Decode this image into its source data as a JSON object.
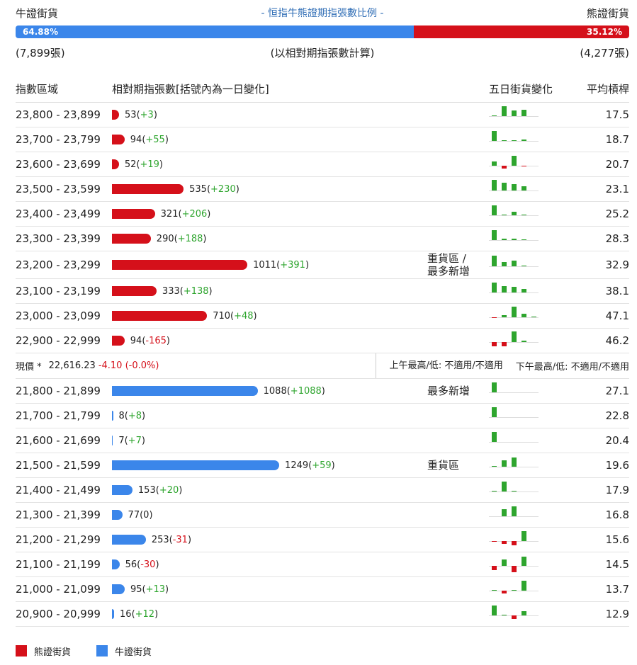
{
  "header": {
    "bull_label": "牛證街貨",
    "title": "- 恒指牛熊證期指張數比例 -",
    "bear_label": "熊證街貨",
    "ratio": {
      "values": [
        64.88,
        35.12
      ],
      "value_labels": [
        "64.88%",
        "35.12%"
      ],
      "colors": [
        "#3b86ea",
        "#d5101a"
      ]
    },
    "bull_count": "(7,899張)",
    "note": "(以相對期指張數計算)",
    "bear_count": "(4,277張)"
  },
  "columns": [
    "指數區域",
    "相對期指張數[括號內為一日變化]",
    "五日街貨變化",
    "平均槓桿"
  ],
  "bear_color": "#d5101a",
  "bull_color": "#3b86ea",
  "up_color": "#2ea52e",
  "down_color": "#d5101a",
  "bear_rows": [
    {
      "range": "23,800 - 23,899",
      "count": 53,
      "change": "+3",
      "five_day": [
        1,
        14,
        8,
        9,
        0
      ],
      "leverage": 17.5
    },
    {
      "range": "23,700 - 23,799",
      "count": 94,
      "change": "+55",
      "five_day": [
        14,
        1,
        1,
        2,
        0
      ],
      "leverage": 18.7
    },
    {
      "range": "23,600 - 23,699",
      "count": 52,
      "change": "+19",
      "five_day": [
        6,
        -4,
        14,
        -1,
        0
      ],
      "leverage": 20.7
    },
    {
      "range": "23,500 - 23,599",
      "count": 535,
      "change": "+230",
      "five_day": [
        15,
        11,
        9,
        6,
        0
      ],
      "leverage": 23.1
    },
    {
      "range": "23,400 - 23,499",
      "count": 321,
      "change": "+206",
      "five_day": [
        14,
        1,
        5,
        1,
        0
      ],
      "leverage": 25.2
    },
    {
      "range": "23,300 - 23,399",
      "count": 290,
      "change": "+188",
      "five_day": [
        14,
        2,
        2,
        1,
        0
      ],
      "leverage": 28.3
    },
    {
      "range": "23,200 - 23,299",
      "count": 1011,
      "change": "+391",
      "note": "重貨區 /\n最多新增",
      "five_day": [
        15,
        6,
        8,
        1,
        0
      ],
      "leverage": 32.9
    },
    {
      "range": "23,100 - 23,199",
      "count": 333,
      "change": "+138",
      "five_day": [
        14,
        9,
        8,
        5,
        0
      ],
      "leverage": 38.1
    },
    {
      "range": "23,000 - 23,099",
      "count": 710,
      "change": "+48",
      "five_day": [
        -1,
        3,
        15,
        5,
        1
      ],
      "leverage": 47.1
    },
    {
      "range": "22,900 - 22,999",
      "count": 94,
      "change": "-165",
      "five_day": [
        -6,
        -6,
        15,
        2,
        0
      ],
      "leverage": 46.2
    }
  ],
  "price_row": {
    "label": "現價 *",
    "price": "22,616.23",
    "change": "-4.10 (-0.0%)",
    "am": "上午最高/低: 不適用/不適用",
    "pm": "下午最高/低: 不適用/不適用"
  },
  "bull_rows": [
    {
      "range": "21,800 - 21,899",
      "count": 1088,
      "change": "+1088",
      "note": "最多新增",
      "five_day": [
        14,
        0,
        0,
        0,
        0
      ],
      "leverage": 27.1
    },
    {
      "range": "21,700 - 21,799",
      "count": 8,
      "change": "+8",
      "five_day": [
        14,
        0,
        0,
        0,
        0
      ],
      "leverage": 22.8
    },
    {
      "range": "21,600 - 21,699",
      "count": 7,
      "change": "+7",
      "five_day": [
        14,
        0,
        0,
        0,
        0
      ],
      "leverage": 20.4
    },
    {
      "range": "21,500 - 21,599",
      "count": 1249,
      "change": "+59",
      "note": "重貨區",
      "five_day": [
        1,
        9,
        13,
        0,
        0
      ],
      "leverage": 19.6
    },
    {
      "range": "21,400 - 21,499",
      "count": 153,
      "change": "+20",
      "five_day": [
        1,
        14,
        1,
        0,
        0
      ],
      "leverage": 17.9
    },
    {
      "range": "21,300 - 21,399",
      "count": 77,
      "change": "0",
      "five_day": [
        0,
        10,
        14,
        0,
        0
      ],
      "leverage": 16.8
    },
    {
      "range": "21,200 - 21,299",
      "count": 253,
      "change": "-31",
      "five_day": [
        -1,
        -4,
        -6,
        14,
        0
      ],
      "leverage": 15.6
    },
    {
      "range": "21,100 - 21,199",
      "count": 56,
      "change": "-30",
      "five_day": [
        -6,
        9,
        -9,
        13,
        0
      ],
      "leverage": 14.5
    },
    {
      "range": "21,000 - 21,099",
      "count": 95,
      "change": "+13",
      "five_day": [
        1,
        -4,
        1,
        14,
        0
      ],
      "leverage": 13.7
    },
    {
      "range": "20,900 - 20,999",
      "count": 16,
      "change": "+12",
      "five_day": [
        14,
        1,
        -5,
        6,
        0
      ],
      "leverage": 12.9
    }
  ],
  "legend": [
    {
      "name": "熊證街貨",
      "color": "#d5101a"
    },
    {
      "name": "牛證街貨",
      "color": "#3b86ea"
    }
  ]
}
